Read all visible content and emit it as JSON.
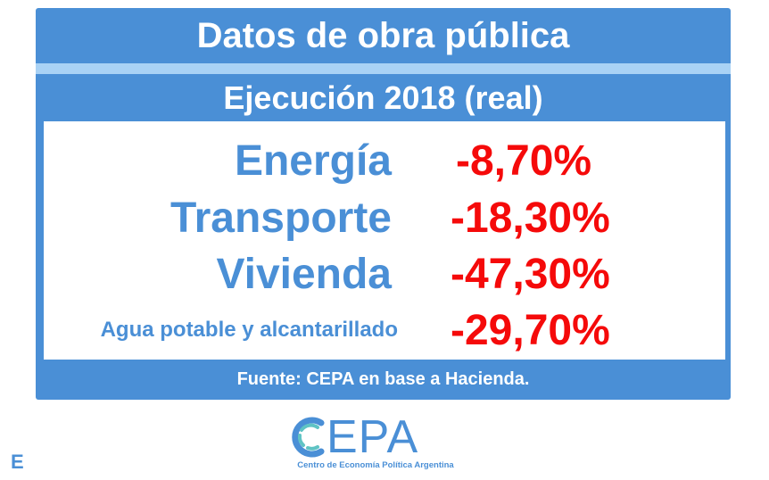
{
  "card": {
    "title": "Datos de obra pública",
    "subtitle": "Ejecución 2018 (real)",
    "rows": [
      {
        "label": "Energía",
        "value": "-8,70%"
      },
      {
        "label": "Transporte",
        "value": "-18,30%"
      },
      {
        "label": "Vivienda",
        "value": "-47,30%"
      },
      {
        "label": "Agua potable y alcantarillado",
        "value": "-29,70%"
      }
    ],
    "footer": "Fuente: CEPA en base a Hacienda."
  },
  "logo": {
    "text": "EPA",
    "caption": "Centro de Economía Política Argentina",
    "icon": "cepa-c-logo-icon"
  },
  "corner_letter": "E",
  "colors": {
    "brand_blue": "#4a8fd6",
    "light_blue": "#a9d2f5",
    "negative_red": "#f50a0a",
    "logo_teal": "#5fc3c4"
  }
}
